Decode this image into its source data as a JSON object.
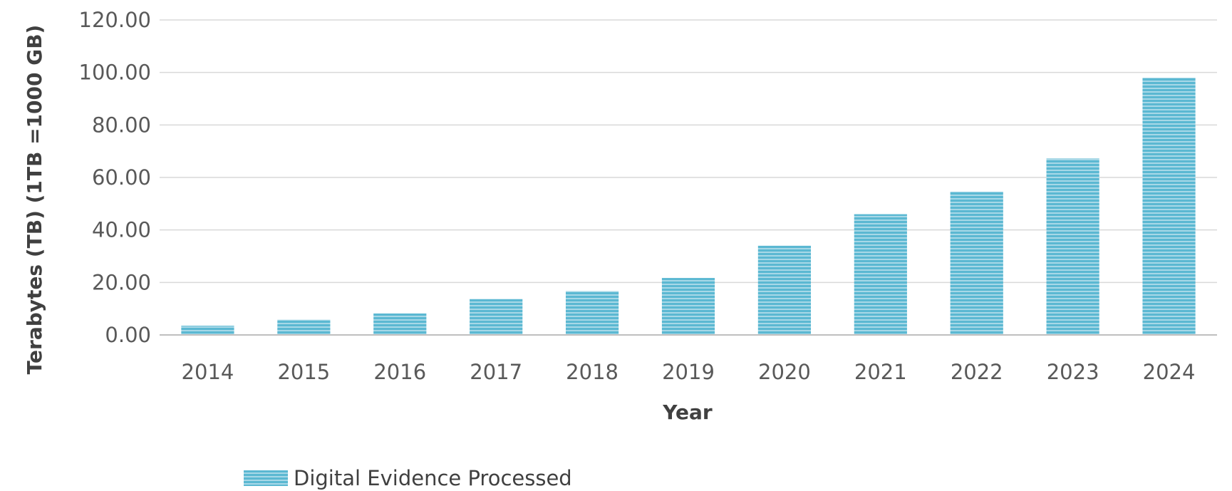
{
  "chart_data": {
    "type": "bar",
    "title": "",
    "xlabel": "Year",
    "ylabel": "Terabytes (TB) (1TB =1000 GB)",
    "categories": [
      "2014",
      "2015",
      "2016",
      "2017",
      "2018",
      "2019",
      "2020",
      "2021",
      "2022",
      "2023",
      "2024"
    ],
    "series": [
      {
        "name": "Digital Evidence Processed",
        "color": "#5bb8d2",
        "stripe_color": "#9ed3e3",
        "values": [
          3.5,
          5.8,
          8.2,
          13.7,
          16.7,
          21.7,
          34.0,
          46.0,
          54.6,
          67.2,
          98.0
        ]
      }
    ],
    "ylim": [
      0,
      120
    ],
    "yticks": [
      0,
      20,
      40,
      60,
      80,
      100,
      120
    ],
    "ytick_labels": [
      "0.00",
      "20.00",
      "40.00",
      "60.00",
      "80.00",
      "100.00",
      "120.00"
    ],
    "grid": true,
    "legend_position": "bottom"
  }
}
